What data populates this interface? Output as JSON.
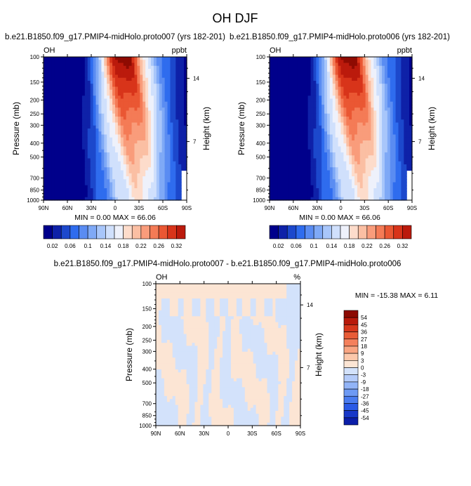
{
  "title": "OH DJF",
  "colors": {
    "levels_seq": [
      "#00008b",
      "#0e21a8",
      "#1c48cc",
      "#2f6cee",
      "#5a8cf2",
      "#7fa9f6",
      "#a8c6fa",
      "#d0e0fc",
      "#eef1fb",
      "#fddccb",
      "#fbbfa3",
      "#f99c7b",
      "#f47b56",
      "#ea5733",
      "#d8341a",
      "#bb1a0c",
      "#8e0b02"
    ],
    "levels_diff": [
      "#00008b",
      "#0b1ea8",
      "#1838c8",
      "#2a5ae6",
      "#4a7cf0",
      "#6e9af4",
      "#92b4f7",
      "#b4cbf9",
      "#d3e2fb",
      "#fce5d4",
      "#fcc8ab",
      "#f9a582",
      "#f4805c",
      "#e85c37",
      "#d6371c",
      "#b81a0b",
      "#8c0a02"
    ]
  },
  "chart_data": [
    {
      "type": "heatmap",
      "name": "panel-proto007",
      "title": "b.e21.B1850.f09_g17.PMIP4-midHolo.proto007 (yrs 182-201)",
      "corner_left": "OH",
      "corner_right": "ppbt",
      "xlabel": "",
      "ylabel": "Pressure (mb)",
      "y2label": "Height (km)",
      "x_ticks": [
        "90N",
        "60N",
        "30N",
        "0",
        "30S",
        "60S",
        "90S"
      ],
      "x_range": [
        90,
        -90
      ],
      "y_ticks": [
        "100",
        "150",
        "200",
        "250",
        "300",
        "400",
        "500",
        "700",
        "850",
        "1000"
      ],
      "y_range": [
        1000,
        100
      ],
      "y2_ticks": [
        "14",
        "7"
      ],
      "minmax_text": "MIN =   0.00   MAX =  66.06",
      "min": 0.0,
      "max": 66.06,
      "colorbar_labels": [
        "0.02",
        "0.06",
        "0.1",
        "0.14",
        "0.18",
        "0.22",
        "0.26",
        "0.32"
      ],
      "colorbar_bins": 16
    },
    {
      "type": "heatmap",
      "name": "panel-proto006",
      "title": "b.e21.B1850.f09_g17.PMIP4-midHolo.proto006 (yrs 182-201)",
      "corner_left": "OH",
      "corner_right": "ppbt",
      "xlabel": "",
      "ylabel": "Pressure (mb)",
      "y2label": "Height (km)",
      "x_ticks": [
        "90N",
        "60N",
        "30N",
        "0",
        "30S",
        "60S",
        "90S"
      ],
      "x_range": [
        90,
        -90
      ],
      "y_ticks": [
        "100",
        "150",
        "200",
        "250",
        "300",
        "400",
        "500",
        "700",
        "850",
        "1000"
      ],
      "y_range": [
        1000,
        100
      ],
      "y2_ticks": [
        "14",
        "7"
      ],
      "minmax_text": "MIN =   0.00   MAX =  66.06",
      "min": 0.0,
      "max": 66.06,
      "colorbar_labels": [
        "0.02",
        "0.06",
        "0.1",
        "0.14",
        "0.18",
        "0.22",
        "0.26",
        "0.32"
      ],
      "colorbar_bins": 16
    },
    {
      "type": "heatmap",
      "name": "panel-difference",
      "title": "b.e21.B1850.f09_g17.PMIP4-midHolo.proto007 - b.e21.B1850.f09_g17.PMIP4-midHolo.proto006",
      "corner_left": "OH",
      "corner_right": "%",
      "xlabel": "",
      "ylabel": "Pressure (mb)",
      "y2label": "Height (km)",
      "x_ticks": [
        "90N",
        "60N",
        "30N",
        "0",
        "30S",
        "60S",
        "90S"
      ],
      "x_range": [
        90,
        -90
      ],
      "y_ticks": [
        "100",
        "150",
        "200",
        "250",
        "300",
        "400",
        "500",
        "700",
        "850",
        "1000"
      ],
      "y_range": [
        1000,
        100
      ],
      "y2_ticks": [
        "14",
        "7"
      ],
      "minmax_text": "MIN = -15.38  MAX =   6.11",
      "min": -15.38,
      "max": 6.11,
      "colorbar_labels": [
        "54",
        "45",
        "36",
        "27",
        "18",
        "9",
        "3",
        "0",
        "-3",
        "-9",
        "-18",
        "-27",
        "-36",
        "-45",
        "-54"
      ],
      "colorbar_bins": 16
    }
  ]
}
